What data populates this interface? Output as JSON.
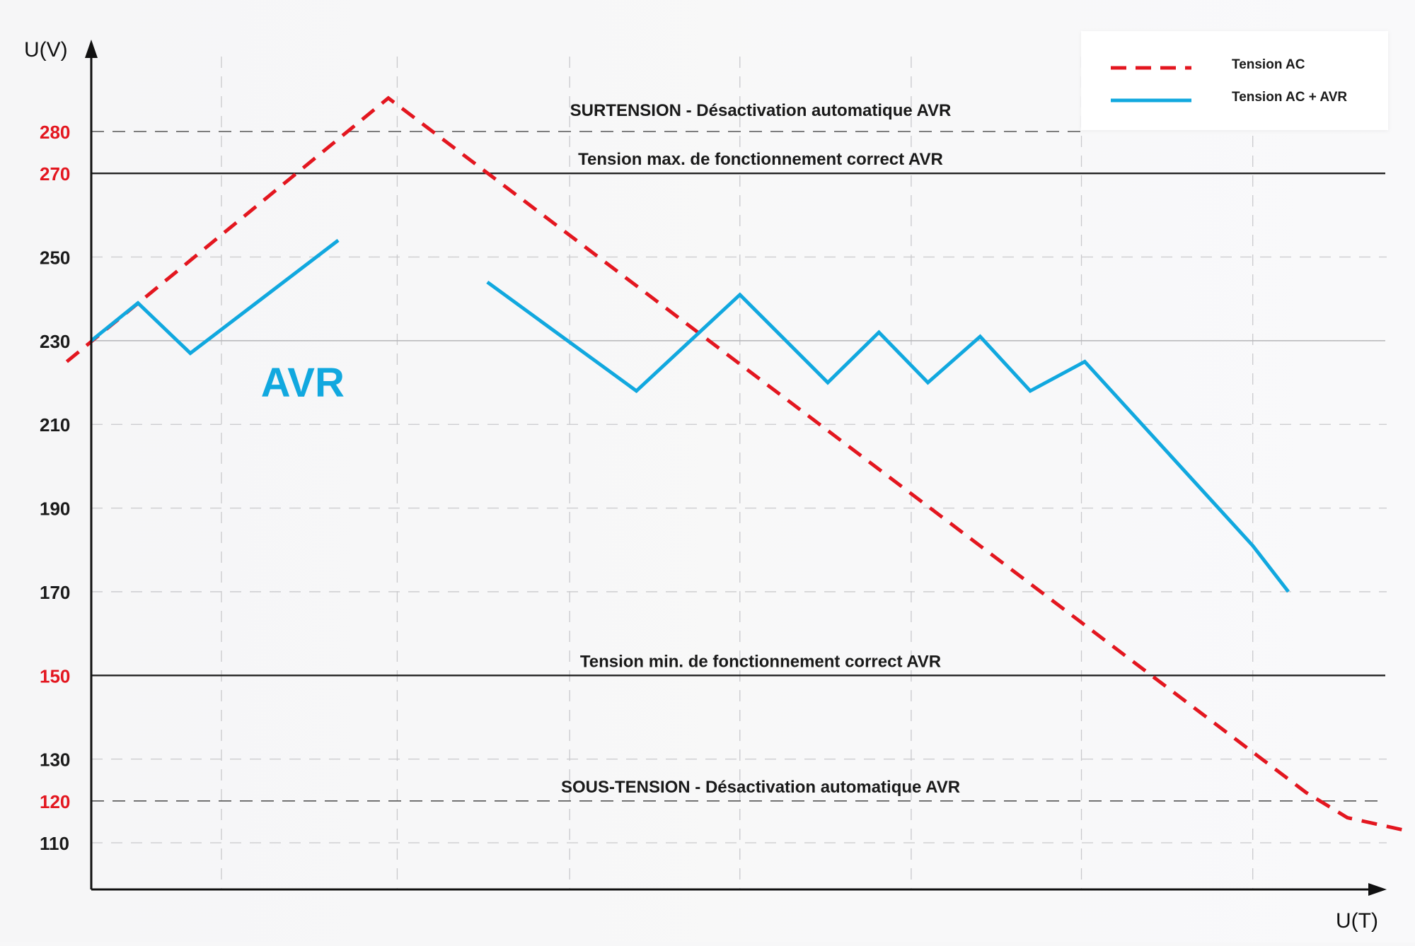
{
  "chart_data": {
    "type": "line",
    "ylabel": "U(V)",
    "xlabel": "U(T)",
    "ylim": [
      100,
      290
    ],
    "xlim": [
      0,
      12
    ],
    "grid": true,
    "legend_position": "top-right",
    "ticks": [
      {
        "value": 280,
        "label": "280",
        "color": "#e3161f"
      },
      {
        "value": 270,
        "label": "270",
        "color": "#e3161f"
      },
      {
        "value": 250,
        "label": "250",
        "color": "#1a1a1a"
      },
      {
        "value": 230,
        "label": "230",
        "color": "#1a1a1a"
      },
      {
        "value": 210,
        "label": "210",
        "color": "#1a1a1a"
      },
      {
        "value": 190,
        "label": "190",
        "color": "#1a1a1a"
      },
      {
        "value": 170,
        "label": "170",
        "color": "#1a1a1a"
      },
      {
        "value": 150,
        "label": "150",
        "color": "#e3161f"
      },
      {
        "value": 130,
        "label": "130",
        "color": "#1a1a1a"
      },
      {
        "value": 120,
        "label": "120",
        "color": "#e3161f"
      },
      {
        "value": 110,
        "label": "110",
        "color": "#1a1a1a"
      }
    ],
    "x_gridlines": [
      1.17,
      2.75,
      4.3,
      5.83,
      7.37,
      8.9,
      10.44,
      12.0
    ],
    "reference_lines": [
      {
        "name": "surtension",
        "value": 280,
        "style": "dashed",
        "label": "SURTENSION - Désactivation automatique AVR"
      },
      {
        "name": "max",
        "value": 270,
        "style": "solid",
        "label": "Tension max. de fonctionnement correct AVR"
      },
      {
        "name": "nominal",
        "value": 230,
        "style": "thin",
        "label": ""
      },
      {
        "name": "min",
        "value": 150,
        "style": "solid",
        "label": "Tension min. de fonctionnement correct AVR"
      },
      {
        "name": "sous-tension",
        "value": 120,
        "style": "dashed",
        "label": "SOUS-TENSION - Désactivation automatique AVR"
      }
    ],
    "series": [
      {
        "name": "Tension AC",
        "color": "#e3161f",
        "style": "dashed",
        "segments": [
          [
            [
              -0.22,
              225
            ],
            [
              2.67,
              288
            ],
            [
              10.92,
              122
            ],
            [
              11.29,
              116
            ],
            [
              11.8,
              113
            ]
          ]
        ]
      },
      {
        "name": "Tension AC + AVR",
        "color": "#11a8df",
        "style": "solid",
        "segments": [
          [
            [
              0.0,
              230
            ],
            [
              0.42,
              239
            ],
            [
              0.89,
              227
            ],
            [
              2.22,
              254
            ]
          ],
          [
            [
              3.56,
              244
            ],
            [
              4.9,
              218
            ],
            [
              5.83,
              241
            ],
            [
              6.62,
              220
            ],
            [
              7.08,
              232
            ],
            [
              7.52,
              220
            ],
            [
              7.99,
              231
            ],
            [
              8.44,
              218
            ],
            [
              8.93,
              225
            ],
            [
              10.44,
              181
            ],
            [
              10.76,
              170
            ]
          ]
        ]
      }
    ],
    "annotations": [
      {
        "text": "AVR",
        "x": 1.9,
        "y": 220,
        "color": "#11a8df"
      }
    ]
  }
}
